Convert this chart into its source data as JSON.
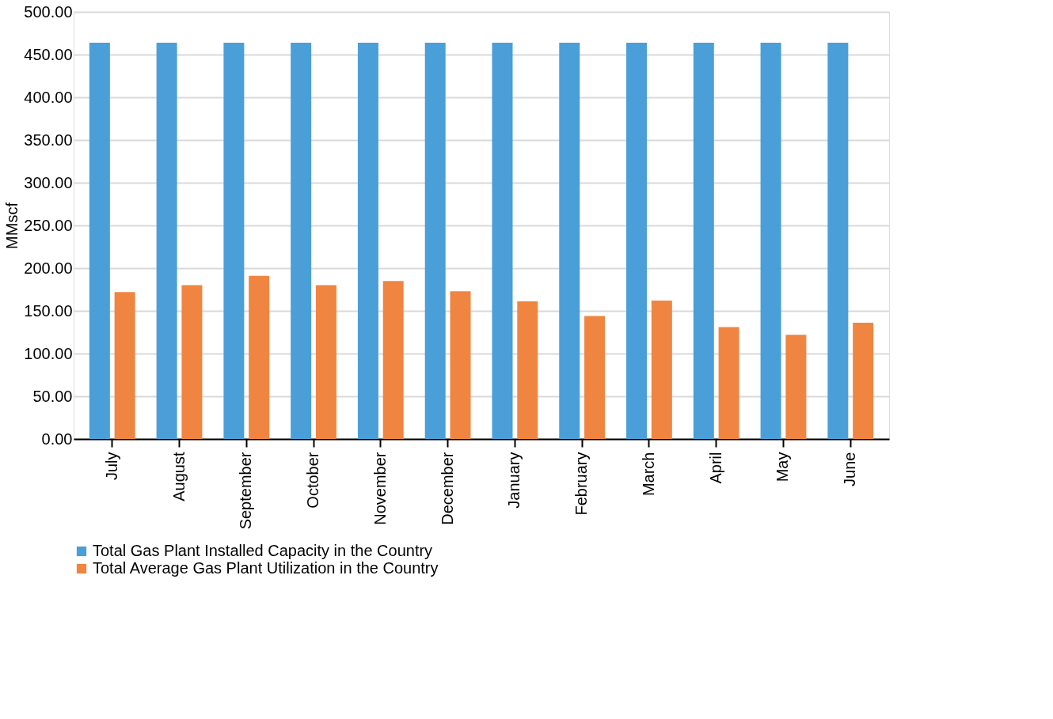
{
  "chart_data": {
    "type": "bar",
    "ylabel": "MMscf",
    "categories": [
      "July",
      "August",
      "September",
      "October",
      "November",
      "December",
      "January",
      "February",
      "March",
      "April",
      "May",
      "June"
    ],
    "series": [
      {
        "name": "Total Gas Plant Installed Capacity in the Country",
        "color": "#4a9fd8",
        "values": [
          464,
          464,
          464,
          464,
          464,
          464,
          464,
          464,
          464,
          464,
          464,
          464
        ]
      },
      {
        "name": "Total Average Gas Plant Utilization in the Country",
        "color": "#f08541",
        "values": [
          172,
          180,
          191,
          180,
          185,
          173,
          161,
          144,
          162,
          131,
          122,
          136
        ]
      }
    ],
    "ylim": [
      0,
      500
    ],
    "yticks": [
      {
        "value": 0,
        "label": "0.00"
      },
      {
        "value": 50,
        "label": "50.00"
      },
      {
        "value": 100,
        "label": "100.00"
      },
      {
        "value": 150,
        "label": "150.00"
      },
      {
        "value": 200,
        "label": "200.00"
      },
      {
        "value": 250,
        "label": "250.00"
      },
      {
        "value": 300,
        "label": "300.00"
      },
      {
        "value": 350,
        "label": "350.00"
      },
      {
        "value": 400,
        "label": "400.00"
      },
      {
        "value": 450,
        "label": "450.00"
      },
      {
        "value": 500,
        "label": "500.00"
      }
    ],
    "grid": "y",
    "legend": "bottom"
  }
}
